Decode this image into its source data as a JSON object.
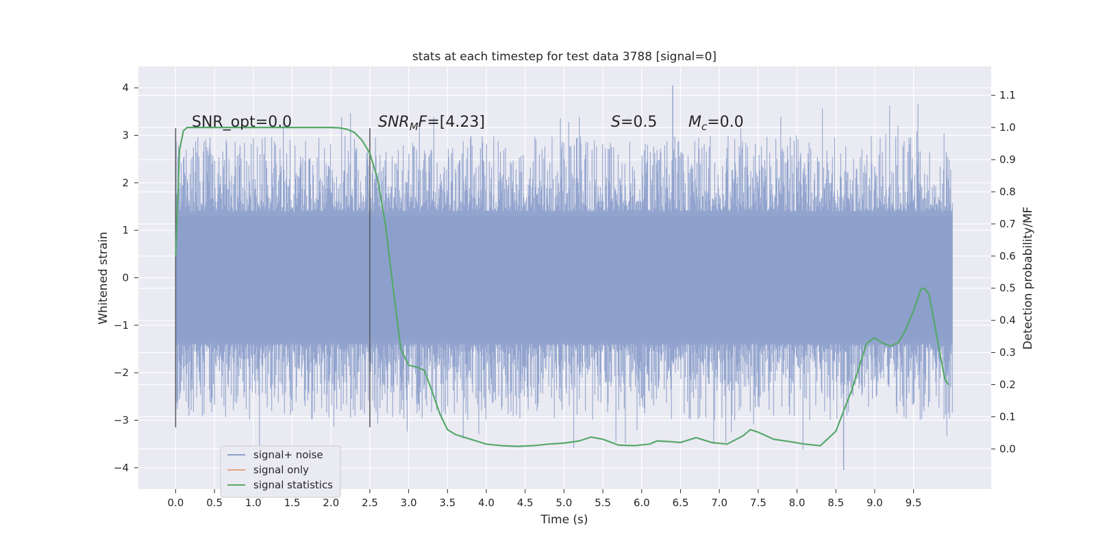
{
  "chart_data": {
    "type": "line",
    "title": "stats at each timestep for test data 3788 [signal=0]",
    "xlabel": "Time (s)",
    "ylabel_left": "Whitened strain",
    "ylabel_right": "Detection probability/MF",
    "xlim": [
      -0.48,
      10.5
    ],
    "ylim_left": [
      -4.45,
      4.45
    ],
    "ylim_right": [
      -0.125,
      1.19
    ],
    "x_ticks": [
      "0.0",
      "0.5",
      "1.0",
      "1.5",
      "2.0",
      "2.5",
      "3.0",
      "3.5",
      "4.0",
      "4.5",
      "5.0",
      "5.5",
      "6.0",
      "6.5",
      "7.0",
      "7.5",
      "8.0",
      "8.5",
      "9.0",
      "9.5"
    ],
    "y_ticks_left": [
      "4",
      "3",
      "2",
      "1",
      "0",
      "−1",
      "−2",
      "−3",
      "−4"
    ],
    "y_ticks_right": [
      "1.1",
      "1.0",
      "0.9",
      "0.8",
      "0.7",
      "0.6",
      "0.5",
      "0.4",
      "0.3",
      "0.2",
      "0.1",
      "0.0"
    ],
    "annotations": {
      "snr_opt": "SNR_opt=0.0",
      "snr_mf_main": "SNR",
      "snr_mf_sub": "M",
      "snr_mf_tail": "F",
      "snr_mf_value": "=[4.23]",
      "s_label": "S",
      "s_value": "=0.5",
      "mc_main": "M",
      "mc_sub": "c",
      "mc_value": "=0.0"
    },
    "vertical_markers_x": [
      0.0,
      2.5
    ],
    "vertical_marker_yrange": [
      -3.15,
      3.15
    ],
    "series": [
      {
        "name": "signal+ noise",
        "axis": "left",
        "color": "#8da0cb",
        "x_range": [
          0.0,
          10.0
        ],
        "typical_envelope": [
          -1.3,
          1.3
        ],
        "peak_high": 4.05,
        "peak_low": -4.05
      },
      {
        "name": "signal only",
        "axis": "left",
        "color": "#e8a084",
        "values": [
          0,
          0
        ]
      },
      {
        "name": "signal statistics",
        "axis": "right",
        "color": "#55a868",
        "x": [
          0.0,
          0.05,
          0.1,
          0.15,
          0.2,
          0.3,
          0.5,
          1.0,
          1.5,
          2.0,
          2.1,
          2.2,
          2.3,
          2.4,
          2.5,
          2.6,
          2.7,
          2.8,
          2.9,
          3.0,
          3.1,
          3.2,
          3.3,
          3.4,
          3.5,
          3.6,
          3.8,
          4.0,
          4.2,
          4.4,
          4.6,
          4.8,
          5.0,
          5.2,
          5.35,
          5.5,
          5.7,
          5.9,
          6.1,
          6.2,
          6.4,
          6.5,
          6.7,
          6.9,
          7.1,
          7.3,
          7.4,
          7.5,
          7.7,
          7.9,
          8.1,
          8.3,
          8.5,
          8.7,
          8.9,
          9.0,
          9.1,
          9.2,
          9.3,
          9.4,
          9.5,
          9.6,
          9.65,
          9.7,
          9.8,
          9.9,
          9.95
        ],
        "values": [
          0.6,
          0.93,
          0.99,
          1.0,
          1.0,
          1.0,
          1.0,
          1.0,
          1.0,
          1.0,
          0.999,
          0.995,
          0.985,
          0.96,
          0.92,
          0.84,
          0.7,
          0.5,
          0.31,
          0.26,
          0.255,
          0.245,
          0.18,
          0.11,
          0.06,
          0.045,
          0.03,
          0.015,
          0.01,
          0.008,
          0.01,
          0.015,
          0.018,
          0.025,
          0.037,
          0.03,
          0.012,
          0.01,
          0.015,
          0.025,
          0.022,
          0.02,
          0.035,
          0.02,
          0.015,
          0.04,
          0.06,
          0.052,
          0.03,
          0.023,
          0.015,
          0.01,
          0.055,
          0.18,
          0.33,
          0.345,
          0.33,
          0.32,
          0.33,
          0.37,
          0.43,
          0.5,
          0.498,
          0.48,
          0.35,
          0.22,
          0.2
        ]
      }
    ],
    "legend_position": "lower-left",
    "grid": true,
    "background": "#eaeaf2"
  }
}
